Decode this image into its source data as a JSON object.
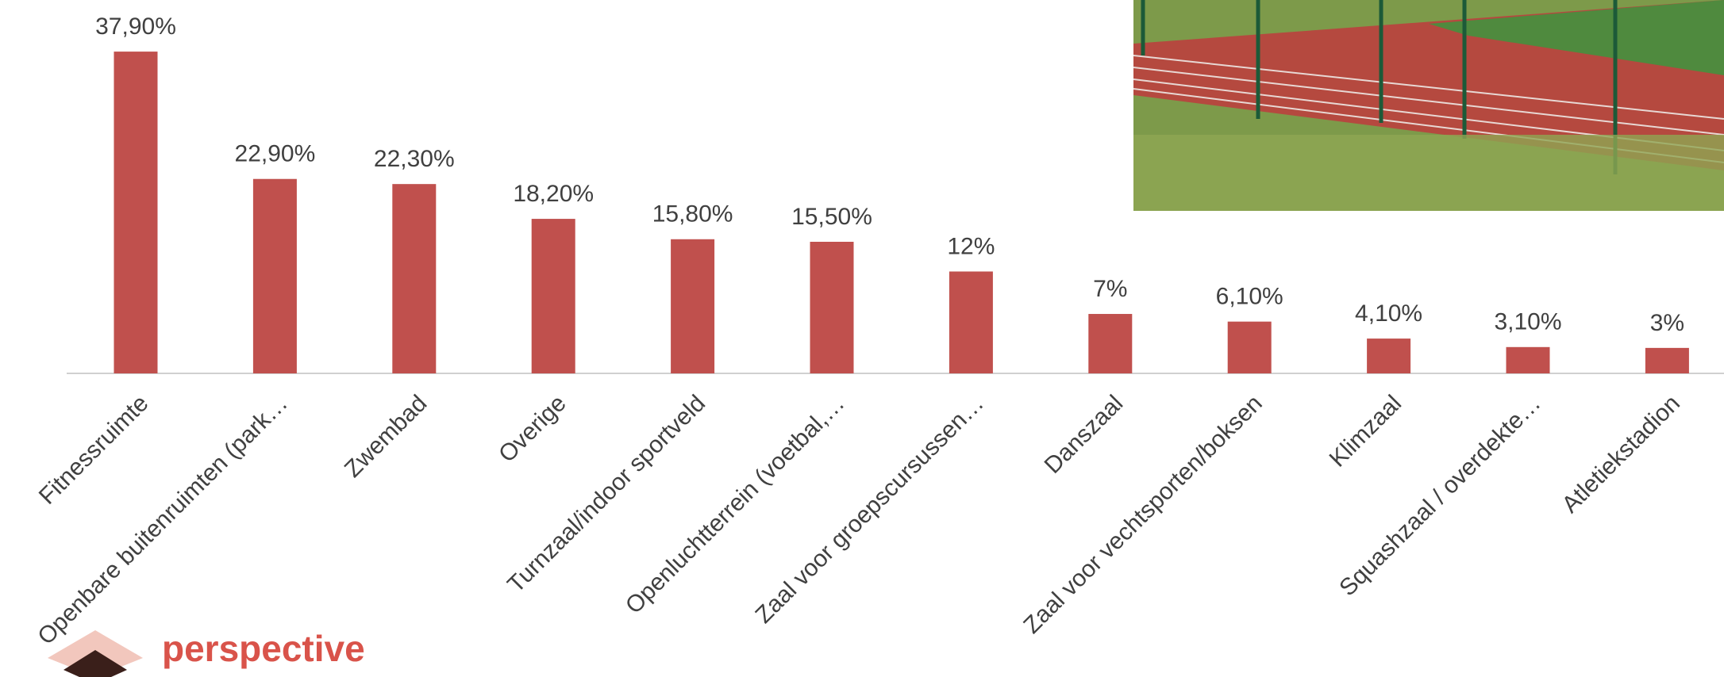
{
  "chart_data": {
    "type": "bar",
    "categories": [
      "Fitnessruimte",
      "Openbare buitenruimten (park…",
      "Zwembad",
      "Overige",
      "Turnzaal/indoor sportveld",
      "Openluchtterrein (voetbal,…",
      "Zaal voor groepscursussen…",
      "Danszaal",
      "Zaal voor vechtsporten/boksen",
      "Klimzaal",
      "Squashzaal / overdekte…",
      "Atletiekstadion"
    ],
    "values": [
      37.9,
      22.9,
      22.3,
      18.2,
      15.8,
      15.5,
      12,
      7,
      6.1,
      4.1,
      3.1,
      3
    ],
    "value_labels": [
      "37,90%",
      "22,90%",
      "22,30%",
      "18,20%",
      "15,80%",
      "15,50%",
      "12%",
      "7%",
      "6,10%",
      "4,10%",
      "3,10%",
      "3%"
    ],
    "color": "#c0504d"
  },
  "logo": "perspective"
}
